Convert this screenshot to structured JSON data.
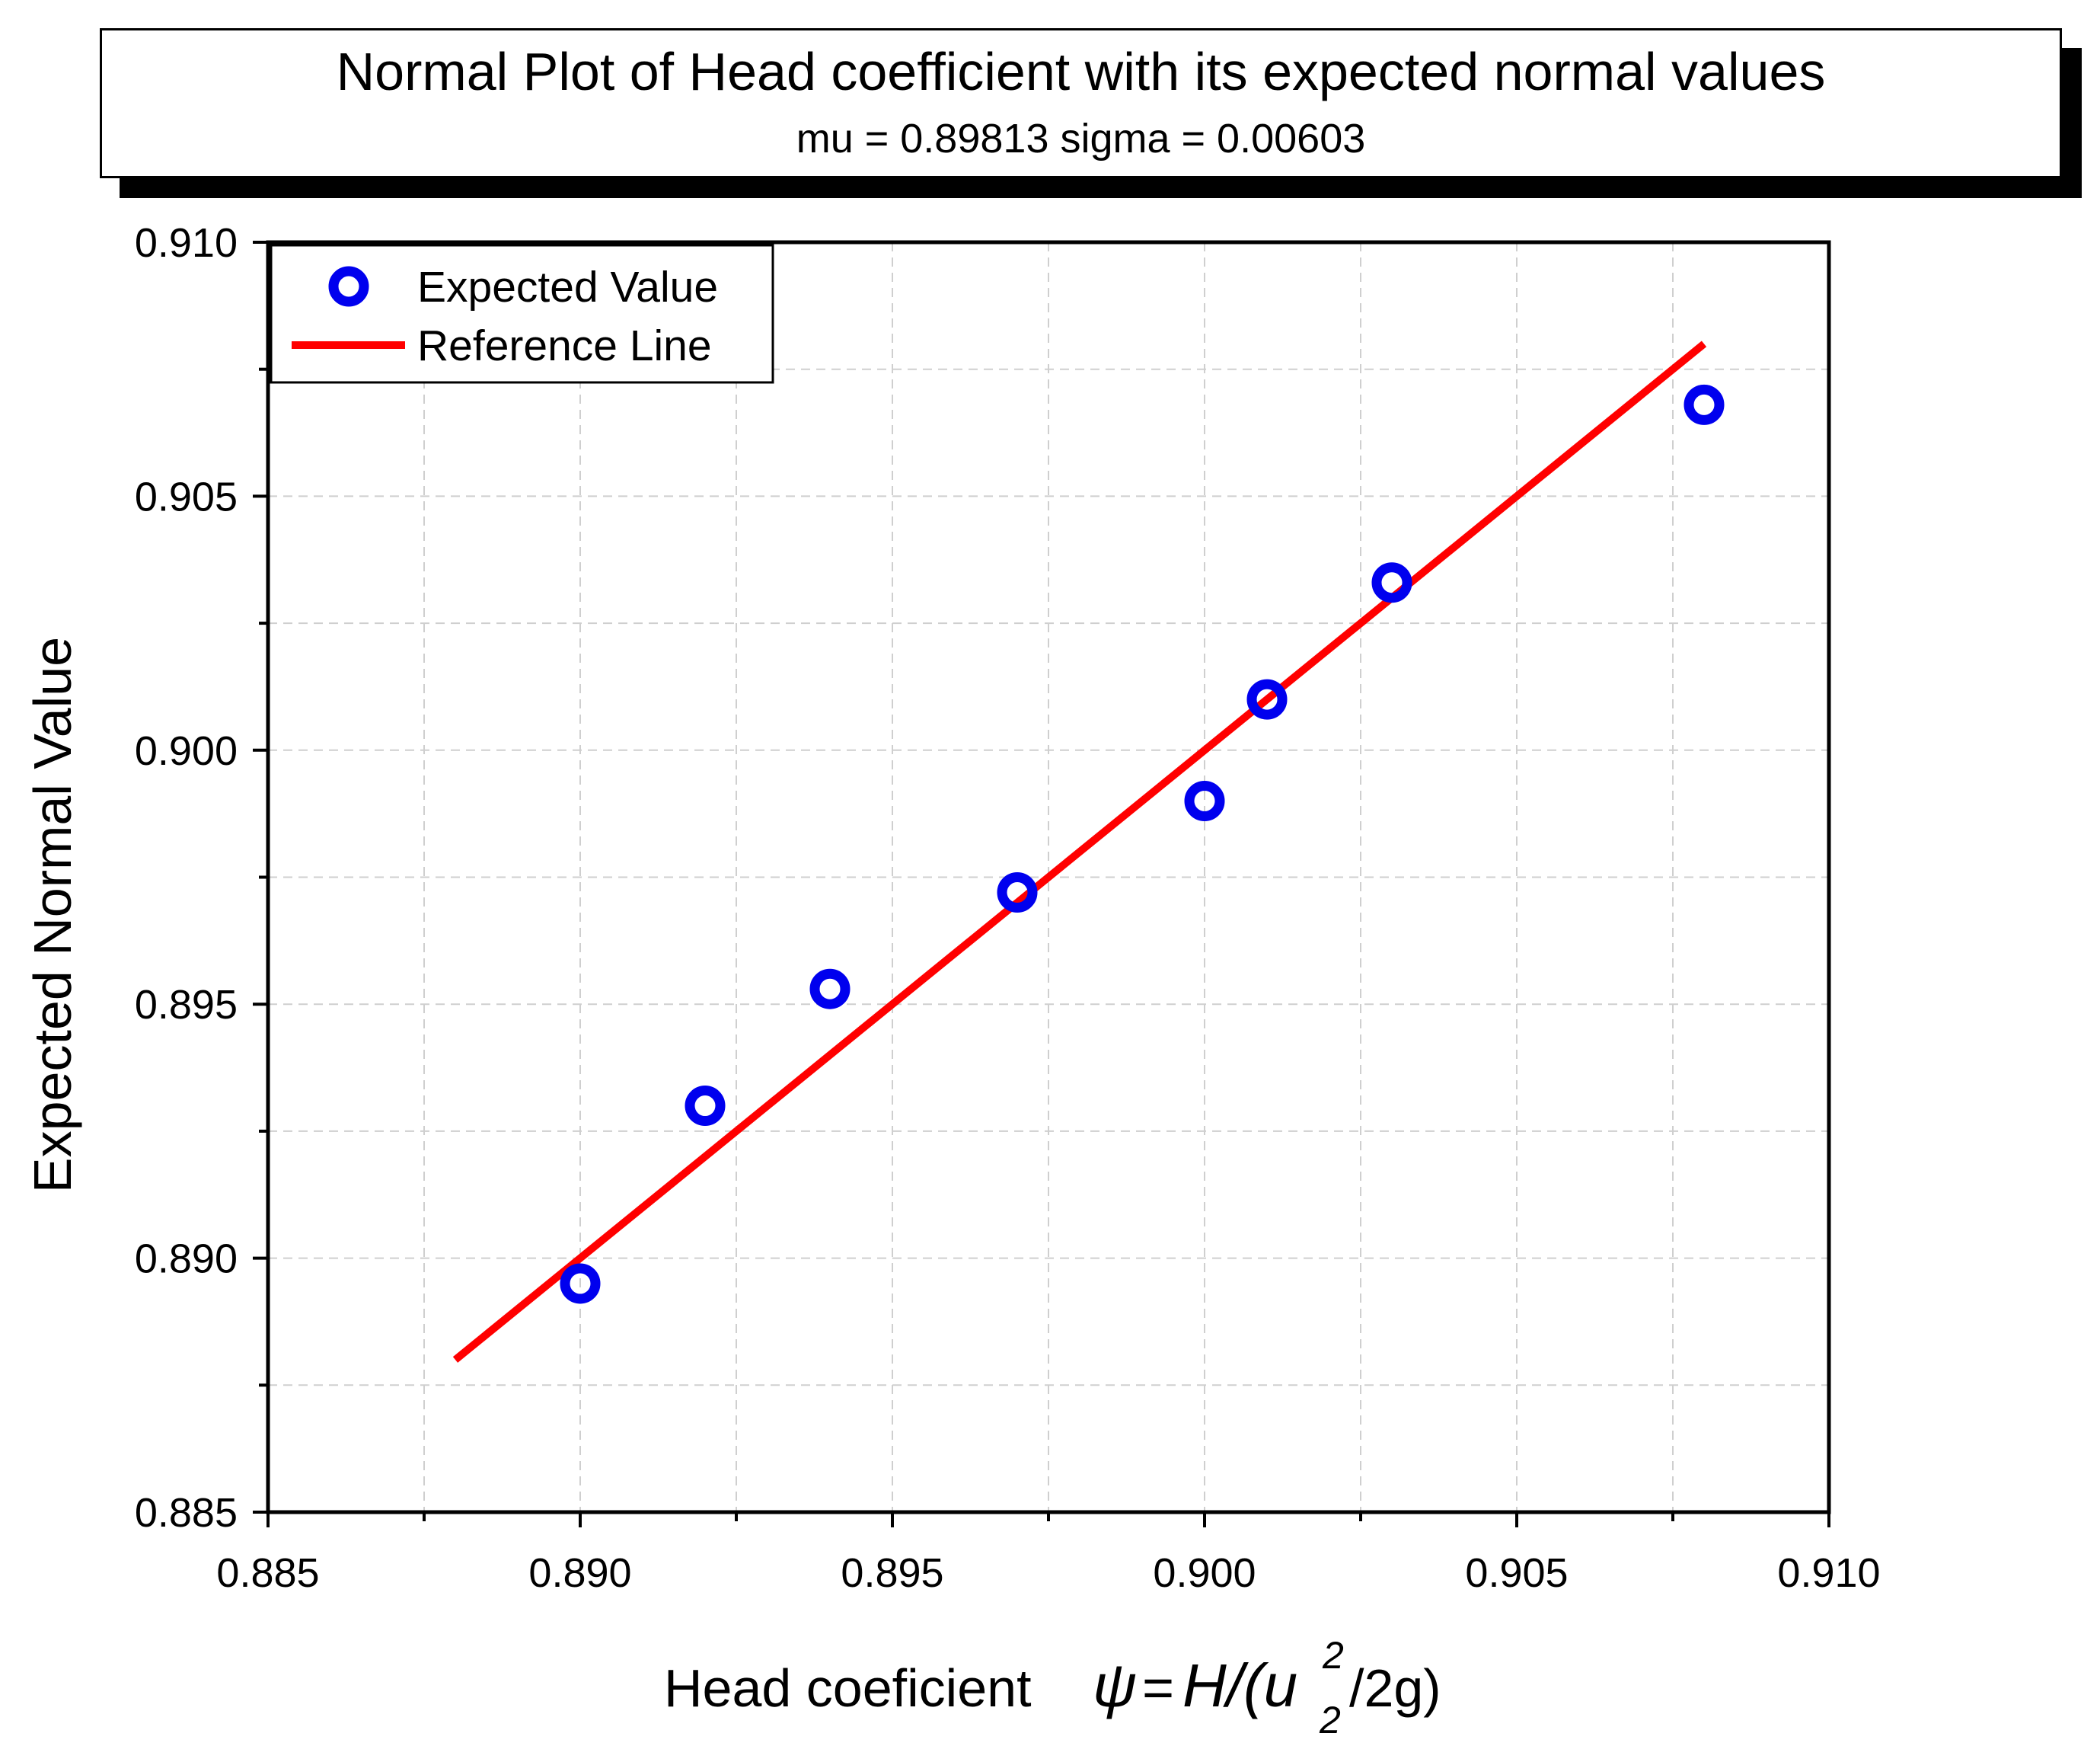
{
  "chart_data": {
    "type": "scatter",
    "title": "Normal Plot of Head coefficient with its expected normal values",
    "subtitle": "mu = 0.89813  sigma = 0.00603",
    "xlabel": {
      "text": "Head coeficient",
      "formula_psi": "ψ",
      "formula_eq": "=",
      "formula_H": "H/(u",
      "formula_sup": "2",
      "formula_sub": "2",
      "formula_tail": "/2g)"
    },
    "ylabel": "Expected Normal Value",
    "xlim": [
      0.885,
      0.91
    ],
    "ylim": [
      0.885,
      0.91
    ],
    "xticks": [
      "0.885",
      "0.890",
      "0.895",
      "0.900",
      "0.905",
      "0.910"
    ],
    "yticks": [
      "0.885",
      "0.890",
      "0.895",
      "0.900",
      "0.905",
      "0.910"
    ],
    "xtick_values": [
      0.885,
      0.89,
      0.895,
      0.9,
      0.905,
      0.91
    ],
    "ytick_values": [
      0.885,
      0.89,
      0.895,
      0.9,
      0.905,
      0.91
    ],
    "grid": true,
    "legend_position": "top-left",
    "series": [
      {
        "name": "Expected Value",
        "type": "scatter",
        "color": "#0000ee",
        "x": [
          0.89,
          0.892,
          0.894,
          0.897,
          0.9,
          0.901,
          0.903,
          0.908
        ],
        "y": [
          0.8895,
          0.893,
          0.8953,
          0.8972,
          0.899,
          0.901,
          0.9033,
          0.9068
        ]
      },
      {
        "name": "Reference Line",
        "type": "line",
        "color": "#ff0000",
        "x": [
          0.888,
          0.908
        ],
        "y": [
          0.888,
          0.908
        ]
      }
    ]
  }
}
